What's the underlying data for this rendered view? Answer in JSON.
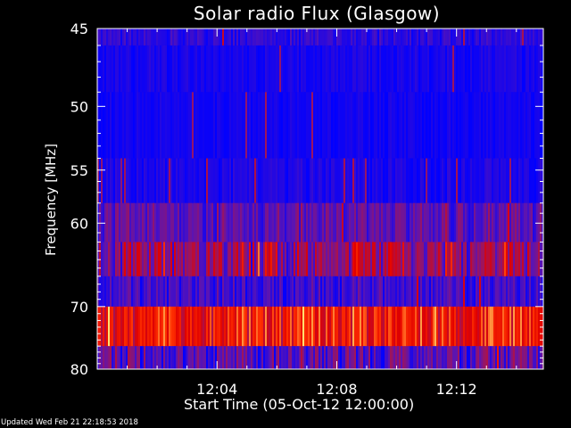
{
  "chart_data": {
    "type": "heatmap",
    "title": "Solar radio Flux (Glasgow)",
    "xlabel": "Start Time (05-Oct-12 12:00:00)",
    "ylabel": "Frequency [MHz]",
    "x_ticks": [
      "12:04",
      "12:08",
      "12:12"
    ],
    "x_tick_minutes": [
      4,
      8,
      12
    ],
    "x_range_minutes": [
      0,
      14.9
    ],
    "y_ticks": [
      45,
      50,
      55,
      60,
      70,
      80
    ],
    "y_range": [
      45,
      80
    ],
    "y_scale": "reciprocal",
    "y_direction": "downward",
    "bands": [
      {
        "freq_range": [
          45,
          46
        ],
        "level": 0.1,
        "variability": 0.1
      },
      {
        "freq_range": [
          46,
          49
        ],
        "level": 0.05,
        "variability": 0.06
      },
      {
        "freq_range": [
          49,
          54
        ],
        "level": 0.04,
        "variability": 0.05
      },
      {
        "freq_range": [
          54,
          58
        ],
        "level": 0.06,
        "variability": 0.07
      },
      {
        "freq_range": [
          58,
          62
        ],
        "level": 0.22,
        "variability": 0.18
      },
      {
        "freq_range": [
          62,
          66
        ],
        "level": 0.38,
        "variability": 0.35
      },
      {
        "freq_range": [
          66,
          70
        ],
        "level": 0.14,
        "variability": 0.15
      },
      {
        "freq_range": [
          70,
          76
        ],
        "level": 0.68,
        "variability": 0.3
      },
      {
        "freq_range": [
          76,
          80
        ],
        "level": 0.22,
        "variability": 0.25
      }
    ],
    "colorscale": [
      "#0000ff",
      "#5a14b4",
      "#a0145a",
      "#e00000",
      "#ff3000",
      "#ffe070"
    ],
    "axis_color": "#ffffff",
    "background": "#000000",
    "grid": false
  },
  "footer": {
    "updated": "Updated Wed Feb 21 22:18:53 2018"
  }
}
